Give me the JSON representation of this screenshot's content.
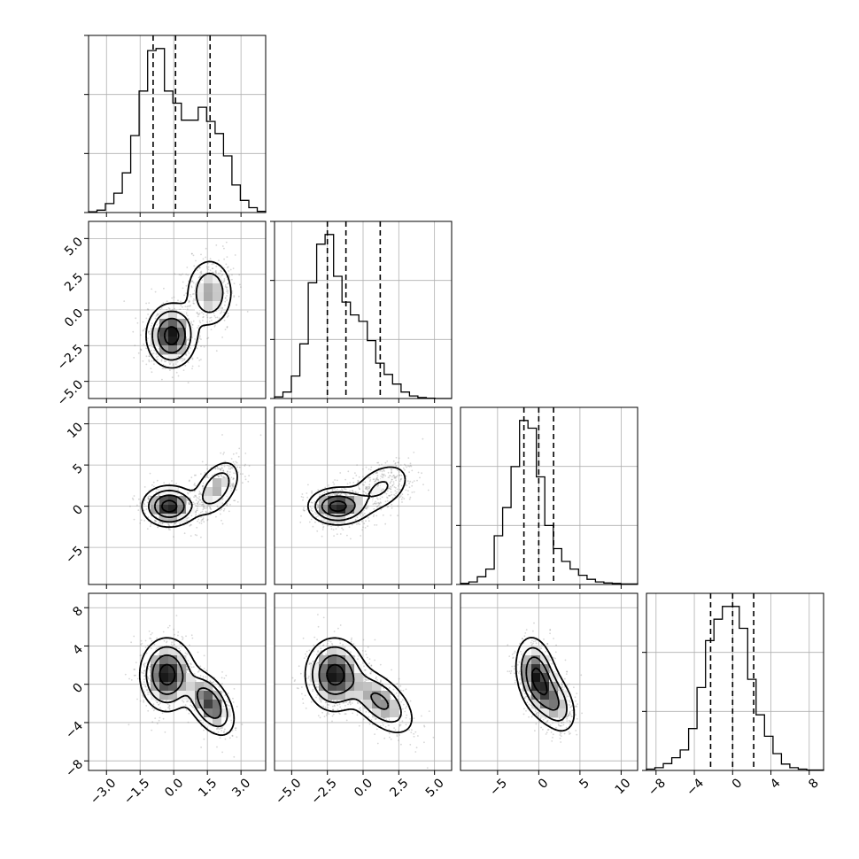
{
  "chart_data": {
    "type": "corner",
    "title": "",
    "n_params": 4,
    "params": [
      {
        "label": "",
        "range": [
          -3.8,
          4.1
        ],
        "ticks": [
          -3.0,
          -1.5,
          0.0,
          1.5,
          3.0
        ],
        "tick_labels": [
          "−3.0",
          "−1.5",
          "0.0",
          "1.5",
          "3.0"
        ],
        "quantiles": [
          -0.92,
          0.08,
          1.62
        ]
      },
      {
        "label": "",
        "range": [
          -6.2,
          6.2
        ],
        "ticks": [
          -5.0,
          -2.5,
          0.0,
          2.5,
          5.0
        ],
        "tick_labels": [
          "−5.0",
          "−2.5",
          "0.0",
          "2.5",
          "5.0"
        ],
        "quantiles": [
          -2.5,
          -1.2,
          1.2
        ]
      },
      {
        "label": "",
        "range": [
          -9.5,
          12.0
        ],
        "ticks": [
          -5,
          0,
          5,
          10
        ],
        "tick_labels": [
          "−5",
          "0",
          "5",
          "10"
        ],
        "quantiles": [
          -1.8,
          0.0,
          1.8
        ]
      },
      {
        "label": "",
        "range": [
          -9.0,
          9.5
        ],
        "ticks": [
          -8,
          -4,
          0,
          4,
          8
        ],
        "tick_labels": [
          "−8",
          "−4",
          "0",
          "4",
          "8"
        ],
        "quantiles": [
          -2.3,
          0.0,
          2.2
        ]
      }
    ],
    "histograms": [
      [
        2,
        6,
        22,
        48,
        98,
        190,
        300,
        400,
        405,
        300,
        270,
        228,
        228,
        260,
        225,
        195,
        140,
        68,
        30,
        12,
        3
      ],
      [
        5,
        20,
        70,
        170,
        360,
        480,
        510,
        380,
        300,
        260,
        240,
        180,
        110,
        75,
        45,
        20,
        8,
        3,
        1,
        0,
        0
      ],
      [
        2,
        5,
        15,
        30,
        95,
        150,
        230,
        320,
        305,
        210,
        115,
        70,
        45,
        30,
        18,
        10,
        5,
        3,
        2,
        1,
        1
      ],
      [
        3,
        6,
        15,
        28,
        45,
        92,
        182,
        285,
        332,
        360,
        360,
        312,
        200,
        122,
        75,
        37,
        14,
        6,
        3,
        1,
        1
      ]
    ],
    "hist_ticks": [
      [
        0,
        1,
        2,
        3
      ],
      [
        0,
        1,
        2,
        3
      ],
      [
        0,
        1,
        2
      ],
      [
        0,
        1,
        2
      ]
    ],
    "contour_levels": [
      "0.118",
      "0.393",
      "0.675",
      "0.864"
    ],
    "pairs": [
      {
        "x": 0,
        "y": 1,
        "components": [
          {
            "weight": 0.62,
            "mean": [
              -0.1,
              -1.8
            ],
            "cov": [
              [
                0.3,
                0.0
              ],
              [
                0.0,
                1.2
              ]
            ]
          },
          {
            "weight": 0.38,
            "mean": [
              1.6,
              1.2
            ],
            "cov": [
              [
                0.3,
                0.0
              ],
              [
                0.0,
                1.6
              ]
            ]
          }
        ]
      },
      {
        "x": 0,
        "y": 2,
        "components": [
          {
            "weight": 0.62,
            "mean": [
              -0.2,
              0.0
            ],
            "cov": [
              [
                0.35,
                0.0
              ],
              [
                0.0,
                1.5
              ]
            ]
          },
          {
            "weight": 0.38,
            "mean": [
              1.9,
              2.2
            ],
            "cov": [
              [
                0.3,
                0.45
              ],
              [
                0.45,
                3.2
              ]
            ]
          }
        ]
      },
      {
        "x": 1,
        "y": 2,
        "components": [
          {
            "weight": 0.62,
            "mean": [
              -1.8,
              0.0
            ],
            "cov": [
              [
                1.0,
                0.0
              ],
              [
                0.0,
                1.2
              ]
            ]
          },
          {
            "weight": 0.38,
            "mean": [
              1.2,
              2.2
            ],
            "cov": [
              [
                1.5,
                0.9
              ],
              [
                0.9,
                3.2
              ]
            ]
          }
        ]
      },
      {
        "x": 0,
        "y": 3,
        "components": [
          {
            "weight": 0.62,
            "mean": [
              -0.3,
              1.0
            ],
            "cov": [
              [
                0.35,
                0.0
              ],
              [
                0.0,
                3.5
              ]
            ]
          },
          {
            "weight": 0.38,
            "mean": [
              1.6,
              -2.0
            ],
            "cov": [
              [
                0.3,
                -0.45
              ],
              [
                -0.45,
                2.8
              ]
            ]
          }
        ]
      },
      {
        "x": 1,
        "y": 3,
        "components": [
          {
            "weight": 0.62,
            "mean": [
              -2.0,
              1.0
            ],
            "cov": [
              [
                1.0,
                0.0
              ],
              [
                0.0,
                3.5
              ]
            ]
          },
          {
            "weight": 0.38,
            "mean": [
              1.2,
              -1.8
            ],
            "cov": [
              [
                1.5,
                -1.2
              ],
              [
                -1.2,
                3.2
              ]
            ]
          }
        ]
      },
      {
        "x": 2,
        "y": 3,
        "components": [
          {
            "weight": 0.62,
            "mean": [
              -0.3,
              0.9
            ],
            "cov": [
              [
                1.5,
                -0.6
              ],
              [
                -0.6,
                4.0
              ]
            ]
          },
          {
            "weight": 0.38,
            "mean": [
              1.8,
              -1.8
            ],
            "cov": [
              [
                2.0,
                -1.0
              ],
              [
                -1.0,
                3.0
              ]
            ]
          }
        ]
      }
    ],
    "grid": true,
    "legend": "none"
  }
}
